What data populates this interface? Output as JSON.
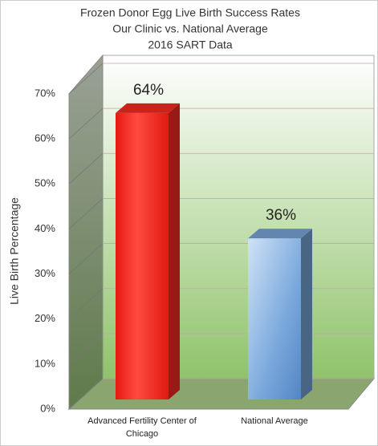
{
  "chart_data": {
    "type": "bar3d",
    "title": [
      "Frozen Donor Egg Live Birth Success Rates",
      "Our Clinic vs. National Average",
      "2016 SART Data"
    ],
    "y_label": "Live Birth Percentage",
    "categories": [
      "Advanced Fertility Center of Chicago",
      "National Average"
    ],
    "values": [
      64,
      36
    ],
    "value_labels": [
      "64%",
      "36%"
    ],
    "colors": [
      "#ff2a22",
      "#7aa8dc"
    ],
    "ylim": [
      0,
      70
    ],
    "yticks": [
      {
        "value": 0,
        "label": "0%"
      },
      {
        "value": 10,
        "label": "10%"
      },
      {
        "value": 20,
        "label": "20%"
      },
      {
        "value": 30,
        "label": "30%"
      },
      {
        "value": 40,
        "label": "40%"
      },
      {
        "value": 50,
        "label": "50%"
      },
      {
        "value": 60,
        "label": "60%"
      },
      {
        "value": 70,
        "label": "70%"
      }
    ],
    "grid": true
  }
}
